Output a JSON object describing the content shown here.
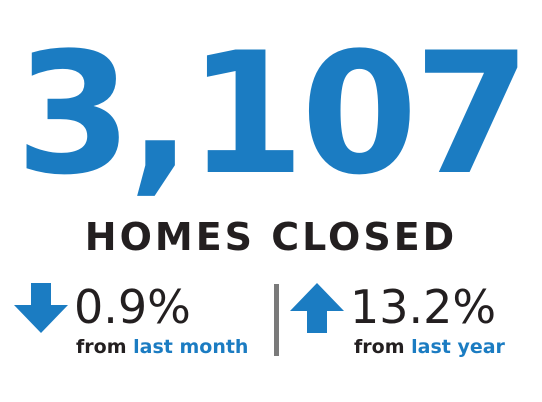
{
  "headline": {
    "value": "3,107",
    "label": "HOMES CLOSED"
  },
  "stats": [
    {
      "direction": "down",
      "value": "0.9%",
      "from": "from",
      "period": "last month"
    },
    {
      "direction": "up",
      "value": "13.2%",
      "from": "from",
      "period": "last year"
    }
  ]
}
